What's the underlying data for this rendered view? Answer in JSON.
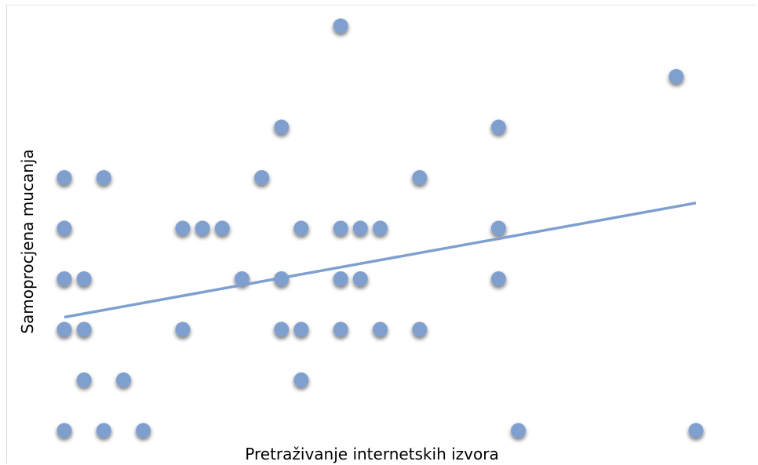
{
  "chart_data": {
    "type": "scatter",
    "title": "",
    "xlabel": "Pretraživanje internetskih izvora",
    "ylabel": "Samoprocjena mucanja",
    "xlim": [
      0,
      33
    ],
    "ylim": [
      1,
      9.3
    ],
    "grid": false,
    "legend": "none",
    "marker_color": "#7f9fcf",
    "trendline_color": "#7f9fcf",
    "trendline": {
      "x": [
        0.5,
        32.5
      ],
      "y": [
        3.24,
        5.5
      ]
    },
    "points": [
      {
        "x": 0.5,
        "y": 1
      },
      {
        "x": 2.5,
        "y": 1
      },
      {
        "x": 4.5,
        "y": 1
      },
      {
        "x": 23.5,
        "y": 1
      },
      {
        "x": 32.5,
        "y": 1
      },
      {
        "x": 1.5,
        "y": 2
      },
      {
        "x": 3.5,
        "y": 2
      },
      {
        "x": 12.5,
        "y": 2
      },
      {
        "x": 0.5,
        "y": 3
      },
      {
        "x": 1.5,
        "y": 3
      },
      {
        "x": 6.5,
        "y": 3
      },
      {
        "x": 11.5,
        "y": 3
      },
      {
        "x": 12.5,
        "y": 3
      },
      {
        "x": 14.5,
        "y": 3
      },
      {
        "x": 16.5,
        "y": 3
      },
      {
        "x": 18.5,
        "y": 3
      },
      {
        "x": 0.5,
        "y": 4
      },
      {
        "x": 1.5,
        "y": 4
      },
      {
        "x": 9.5,
        "y": 4
      },
      {
        "x": 11.5,
        "y": 4
      },
      {
        "x": 14.5,
        "y": 4
      },
      {
        "x": 15.5,
        "y": 4
      },
      {
        "x": 22.5,
        "y": 4
      },
      {
        "x": 0.5,
        "y": 5
      },
      {
        "x": 6.5,
        "y": 5
      },
      {
        "x": 7.5,
        "y": 5
      },
      {
        "x": 8.5,
        "y": 5
      },
      {
        "x": 12.5,
        "y": 5
      },
      {
        "x": 14.5,
        "y": 5
      },
      {
        "x": 15.5,
        "y": 5
      },
      {
        "x": 16.5,
        "y": 5
      },
      {
        "x": 22.5,
        "y": 5
      },
      {
        "x": 0.5,
        "y": 6
      },
      {
        "x": 2.5,
        "y": 6
      },
      {
        "x": 10.5,
        "y": 6
      },
      {
        "x": 18.5,
        "y": 6
      },
      {
        "x": 11.5,
        "y": 7
      },
      {
        "x": 22.5,
        "y": 7
      },
      {
        "x": 31.5,
        "y": 8
      },
      {
        "x": 14.5,
        "y": 9
      }
    ]
  }
}
